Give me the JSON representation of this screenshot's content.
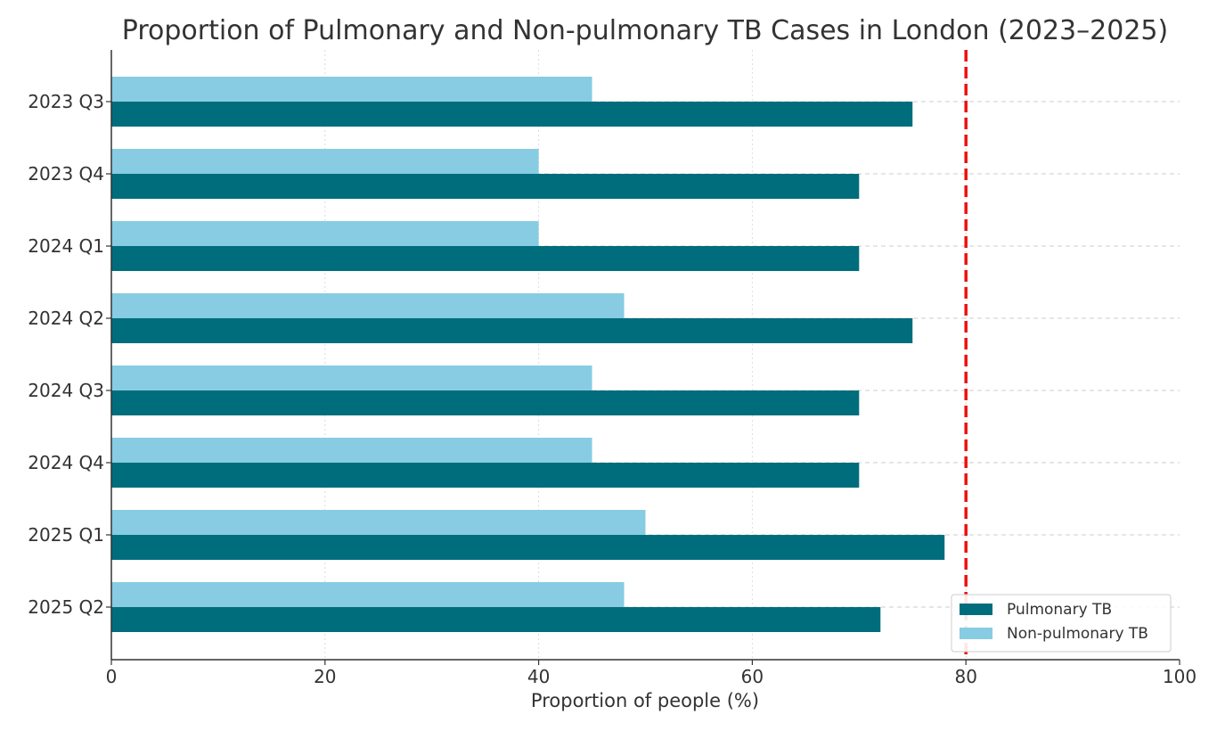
{
  "chart_data": {
    "type": "bar",
    "orientation": "horizontal",
    "title": "Proportion of Pulmonary and Non-pulmonary TB Cases in London (2023–2025)",
    "xlabel": "Proportion of people (%)",
    "ylabel": "",
    "xlim": [
      0,
      100
    ],
    "xticks": [
      0,
      20,
      40,
      60,
      80,
      100
    ],
    "categories": [
      "2023 Q3",
      "2023 Q4",
      "2024 Q1",
      "2024 Q2",
      "2024 Q3",
      "2024 Q4",
      "2025 Q1",
      "2025 Q2"
    ],
    "series": [
      {
        "name": "Pulmonary TB",
        "color": "#006D7D",
        "values": [
          75,
          70,
          70,
          75,
          70,
          70,
          78,
          72
        ]
      },
      {
        "name": "Non-pulmonary TB",
        "color": "#87CCE2",
        "values": [
          45,
          40,
          40,
          48,
          45,
          45,
          50,
          48
        ]
      }
    ],
    "reference_line": {
      "x": 80,
      "color": "#EE1111",
      "style": "dashed"
    },
    "grid": true,
    "legend_position": "lower-right"
  }
}
